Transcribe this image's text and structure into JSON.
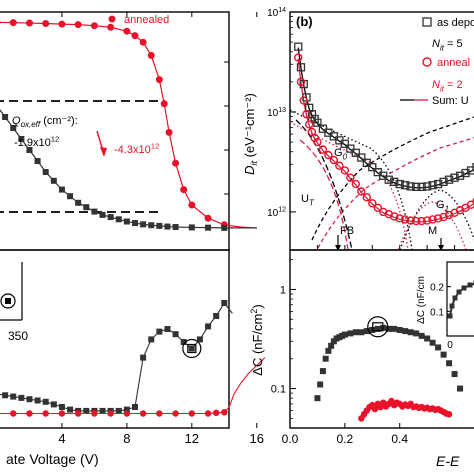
{
  "colors": {
    "as_deposited": "#333333",
    "annealed": "#e8132a",
    "fit_black": "#000000",
    "fit_red": "#d6204a",
    "dashed": "#000000"
  },
  "chart_data": [
    {
      "id": "cv",
      "type": "line",
      "series": [
        {
          "name": "annealed",
          "color": "#e8132a",
          "marker": "circle",
          "x": [
            0.0,
            1.0,
            2.0,
            3.0,
            4.0,
            5.0,
            6.0,
            7.0,
            8.0,
            8.5,
            9.0,
            9.5,
            10.0,
            10.3,
            10.6,
            11.0,
            11.5,
            12.0,
            13.0,
            14.0,
            15.0,
            16.0
          ],
          "y": [
            0.98,
            0.979,
            0.977,
            0.975,
            0.972,
            0.97,
            0.965,
            0.958,
            0.94,
            0.92,
            0.89,
            0.83,
            0.72,
            0.61,
            0.48,
            0.34,
            0.22,
            0.15,
            0.09,
            0.06,
            0.05,
            0.045
          ]
        },
        {
          "name": "",
          "color": "#333333",
          "marker": "square",
          "x": [
            0.0,
            0.5,
            1.0,
            1.5,
            2.0,
            2.5,
            3.0,
            3.5,
            4.0,
            4.5,
            5.0,
            5.5,
            6.0,
            6.5,
            7.0,
            7.5,
            8.0,
            8.5,
            9.0,
            9.5,
            10.0,
            10.5,
            11.0,
            12.0,
            13.0,
            14.0,
            15.0,
            16.0
          ],
          "y": [
            0.6,
            0.55,
            0.5,
            0.45,
            0.4,
            0.35,
            0.3,
            0.26,
            0.22,
            0.19,
            0.16,
            0.14,
            0.12,
            0.105,
            0.095,
            0.085,
            0.075,
            0.068,
            0.062,
            0.058,
            0.055,
            0.052,
            0.05,
            0.048,
            0.047,
            0.046,
            0.046,
            0.046
          ]
        }
      ],
      "xlim": [
        0,
        17
      ],
      "ylim": [
        0,
        1
      ],
      "hlines": [
        0.8,
        0.2
      ],
      "annotations": {
        "legend_annealed": "annealed",
        "qox_label": "Q",
        "qox_sub": "ox,eff",
        "qox_unit": " (cm⁻²):",
        "val_black": "-1.9x10",
        "val_red": "-4.3x10",
        "exp": "12"
      }
    },
    {
      "id": "dit",
      "type": "scatter",
      "title": "(b)",
      "ylabel": "D",
      "ylabel_sub": "it",
      "ylabel_unit": " (eV⁻¹cm⁻²)",
      "yscale": "log",
      "ylim": [
        500000000000,
        100000000000000
      ],
      "xlim": [
        0,
        0.7
      ],
      "yticks": [
        {
          "v": 1000000000000,
          "label": "10",
          "exp": "12"
        },
        {
          "v": 10000000000000,
          "label": "10",
          "exp": "13"
        },
        {
          "v": 100000000000000,
          "label": "10",
          "exp": "14"
        }
      ],
      "legend": [
        {
          "text": "as depo"
        },
        {
          "text": "N",
          "sub": "it",
          "rest": " = 5"
        },
        {
          "text": "anneal"
        },
        {
          "text": "N",
          "sub": "it",
          "rest": " = 2"
        },
        {
          "text": "Sum: U"
        }
      ],
      "labels": {
        "g0": "G",
        "g0_sub": "0",
        "g1": "G",
        "g1_sub": "1",
        "ut": "U",
        "ut_sub": "T",
        "fb": "FB",
        "mg": "M"
      },
      "series": [
        {
          "name": "as depo",
          "color": "#333333",
          "marker": "square",
          "x": [
            0.03,
            0.04,
            0.05,
            0.06,
            0.07,
            0.08,
            0.09,
            0.1,
            0.12,
            0.14,
            0.16,
            0.18,
            0.2,
            0.22,
            0.24,
            0.26,
            0.28,
            0.3,
            0.32,
            0.34,
            0.36,
            0.38,
            0.4,
            0.42,
            0.44,
            0.46,
            0.48,
            0.5,
            0.52,
            0.54,
            0.56,
            0.58,
            0.6,
            0.62,
            0.64,
            0.66,
            0.68
          ],
          "y": [
            45000000000000.0,
            28000000000000.0,
            19000000000000.0,
            14000000000000.0,
            11000000000000.0,
            9500000000000.0,
            8500000000000.0,
            7800000000000.0,
            6800000000000.0,
            6200000000000.0,
            5700000000000.0,
            5200000000000.0,
            4800000000000.0,
            4300000000000.0,
            3900000000000.0,
            3500000000000.0,
            3100000000000.0,
            2800000000000.0,
            2500000000000.0,
            2300000000000.0,
            2100000000000.0,
            2000000000000.0,
            1900000000000.0,
            1850000000000.0,
            1800000000000.0,
            1780000000000.0,
            1780000000000.0,
            1800000000000.0,
            1850000000000.0,
            1900000000000.0,
            2000000000000.0,
            2100000000000.0,
            2200000000000.0,
            2300000000000.0,
            2450000000000.0,
            2600000000000.0,
            2800000000000.0
          ]
        },
        {
          "name": "anneal",
          "color": "#e8132a",
          "marker": "circle",
          "x": [
            0.03,
            0.04,
            0.05,
            0.06,
            0.07,
            0.08,
            0.09,
            0.1,
            0.12,
            0.14,
            0.16,
            0.18,
            0.2,
            0.22,
            0.24,
            0.26,
            0.28,
            0.3,
            0.32,
            0.34,
            0.36,
            0.38,
            0.4,
            0.42,
            0.44,
            0.46,
            0.48,
            0.5,
            0.52,
            0.54,
            0.56,
            0.58,
            0.6,
            0.62,
            0.64,
            0.66,
            0.68
          ],
          "y": [
            35000000000000.0,
            20000000000000.0,
            13000000000000.0,
            9500000000000.0,
            7500000000000.0,
            6300000000000.0,
            5500000000000.0,
            5000000000000.0,
            4200000000000.0,
            3700000000000.0,
            3300000000000.0,
            2900000000000.0,
            2600000000000.0,
            2200000000000.0,
            1900000000000.0,
            1600000000000.0,
            1400000000000.0,
            1220000000000.0,
            1100000000000.0,
            1000000000000.0,
            950000000000.0,
            900000000000.0,
            860000000000.0,
            840000000000.0,
            820000000000.0,
            810000000000.0,
            810000000000.0,
            820000000000.0,
            840000000000.0,
            860000000000.0,
            890000000000.0,
            930000000000.0,
            980000000000.0,
            1040000000000.0,
            1100000000000.0,
            1180000000000.0,
            1280000000000.0
          ]
        }
      ]
    },
    {
      "id": "leak",
      "type": "line",
      "xlabel": "ate Voltage (V)",
      "xlim": [
        0,
        17
      ],
      "ylim": [
        0,
        1
      ],
      "xticks": [
        {
          "v": 4,
          "label": "4"
        },
        {
          "v": 8,
          "label": "8"
        },
        {
          "v": 12,
          "label": "12"
        },
        {
          "v": 16,
          "label": "16"
        }
      ],
      "inset_label": "350",
      "series": [
        {
          "name": "",
          "color": "#333333",
          "marker": "square",
          "x": [
            0.0,
            0.5,
            1.0,
            1.5,
            2.0,
            2.5,
            3.0,
            3.5,
            4.0,
            4.5,
            5.0,
            5.5,
            6.0,
            6.5,
            7.0,
            7.5,
            8.0,
            8.5,
            9.0,
            9.5,
            10.0,
            10.5,
            11.0,
            11.5,
            12.0,
            12.5,
            13.0,
            13.5,
            14.0,
            14.5
          ],
          "y": [
            0.2,
            0.19,
            0.18,
            0.17,
            0.16,
            0.15,
            0.14,
            0.12,
            0.1,
            0.08,
            0.07,
            0.07,
            0.07,
            0.07,
            0.07,
            0.07,
            0.08,
            0.1,
            0.48,
            0.62,
            0.68,
            0.7,
            0.66,
            0.6,
            0.55,
            0.62,
            0.72,
            0.8,
            0.9,
            0.82
          ]
        },
        {
          "name": "",
          "color": "#e8132a",
          "marker": "circle",
          "x": [
            0.0,
            1.0,
            2.0,
            3.0,
            4.0,
            5.0,
            6.0,
            7.0,
            8.0,
            9.0,
            10.0,
            11.0,
            12.0,
            13.0,
            13.5,
            14.0,
            14.3,
            14.6,
            15.0,
            15.5,
            16.0,
            16.5
          ],
          "y": [
            0.05,
            0.05,
            0.05,
            0.05,
            0.05,
            0.05,
            0.05,
            0.05,
            0.05,
            0.05,
            0.05,
            0.05,
            0.05,
            0.05,
            0.055,
            0.06,
            0.1,
            0.2,
            0.28,
            0.36,
            0.42,
            0.48
          ]
        }
      ]
    },
    {
      "id": "dc",
      "type": "scatter",
      "ylabel": "ΔC (nF/cm",
      "ylabel_sup": "2",
      "ylabel_close": ")",
      "xlabel": "E-E",
      "yscale": "log",
      "ylim": [
        0.04,
        2.5
      ],
      "xlim": [
        0,
        0.7
      ],
      "yticks": [
        {
          "v": 0.1,
          "label": "0.1"
        },
        {
          "v": 1,
          "label": "1"
        }
      ],
      "xticks": [
        {
          "v": 0.0,
          "label": "0.0"
        },
        {
          "v": 0.2,
          "label": "0.2"
        },
        {
          "v": 0.4,
          "label": "0.4"
        }
      ],
      "inset": {
        "ylabel": "ΔC (nF/cm",
        "yticks": [
          {
            "v": 0.1,
            "label": "0.1"
          },
          {
            "v": 0.2,
            "label": "0.2"
          }
        ],
        "xtick": "0"
      },
      "series": [
        {
          "name": "",
          "color": "#333333",
          "marker": "square",
          "x": [
            0.1,
            0.11,
            0.12,
            0.13,
            0.14,
            0.15,
            0.16,
            0.17,
            0.18,
            0.19,
            0.2,
            0.22,
            0.24,
            0.26,
            0.28,
            0.3,
            0.32,
            0.34,
            0.36,
            0.38,
            0.4,
            0.42,
            0.44,
            0.46,
            0.48,
            0.5,
            0.52,
            0.54,
            0.56,
            0.58,
            0.6,
            0.62
          ],
          "y": [
            0.08,
            0.11,
            0.15,
            0.2,
            0.24,
            0.27,
            0.3,
            0.32,
            0.33,
            0.34,
            0.35,
            0.36,
            0.37,
            0.37,
            0.38,
            0.39,
            0.4,
            0.41,
            0.4,
            0.4,
            0.39,
            0.38,
            0.37,
            0.36,
            0.34,
            0.32,
            0.29,
            0.26,
            0.22,
            0.18,
            0.14,
            0.1
          ]
        },
        {
          "name": "",
          "color": "#e8132a",
          "marker": "circle",
          "x": [
            0.26,
            0.27,
            0.28,
            0.29,
            0.3,
            0.31,
            0.32,
            0.33,
            0.34,
            0.35,
            0.36,
            0.37,
            0.38,
            0.39,
            0.4,
            0.41,
            0.42,
            0.43,
            0.44,
            0.45,
            0.46,
            0.47,
            0.48,
            0.49,
            0.5,
            0.51,
            0.52,
            0.53,
            0.54,
            0.55,
            0.56,
            0.57,
            0.58
          ],
          "y": [
            0.05,
            0.055,
            0.06,
            0.065,
            0.068,
            0.062,
            0.07,
            0.065,
            0.072,
            0.066,
            0.07,
            0.075,
            0.068,
            0.072,
            0.07,
            0.066,
            0.069,
            0.067,
            0.07,
            0.065,
            0.066,
            0.064,
            0.065,
            0.063,
            0.064,
            0.062,
            0.063,
            0.061,
            0.062,
            0.06,
            0.058,
            0.056,
            0.055
          ]
        }
      ]
    }
  ]
}
